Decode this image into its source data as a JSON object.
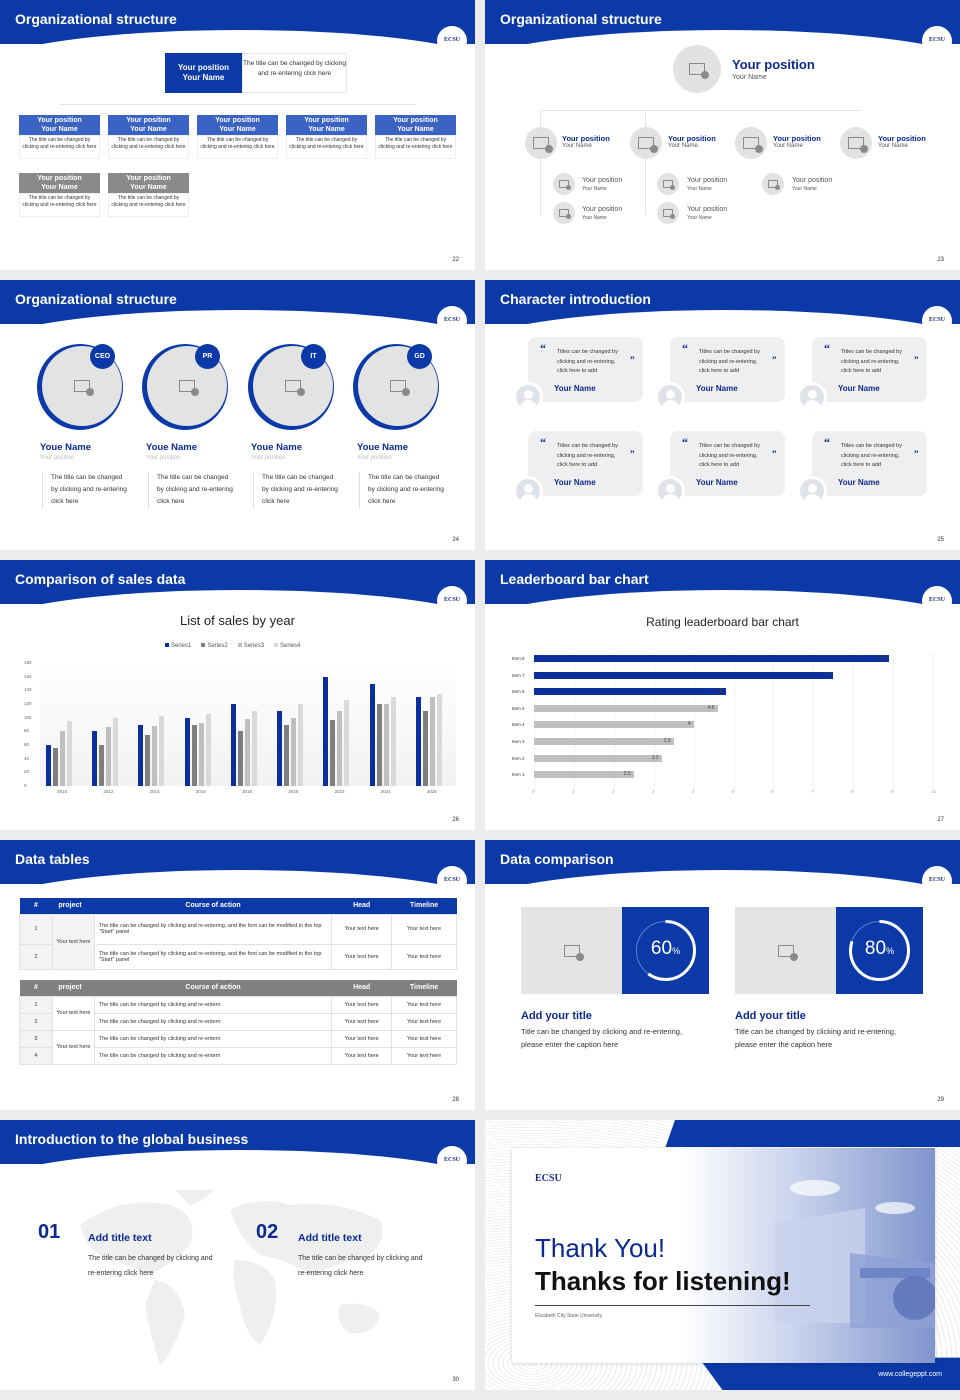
{
  "common": {
    "logo": "ECSU",
    "accent": "#0b3aa8"
  },
  "s22": {
    "title": "Organizational structure",
    "page": "22",
    "top": {
      "position": "Your position",
      "name": "Your Name",
      "desc": "The title can be changed by clicking and re-entering click here"
    },
    "cards": [
      {
        "position": "Your position",
        "name": "Your Name",
        "desc": "The title can be changed by clicking and re-entering click here",
        "style": "blue"
      },
      {
        "position": "Your position",
        "name": "Your Name",
        "desc": "The title can be changed by clicking and re-entering click here",
        "style": "blue"
      },
      {
        "position": "Your position",
        "name": "Your Name",
        "desc": "The title can be changed by clicking and re-entering click here",
        "style": "blue"
      },
      {
        "position": "Your position",
        "name": "Your Name",
        "desc": "The title can be changed by clicking and re-entering click here",
        "style": "blue"
      },
      {
        "position": "Your position",
        "name": "Your Name",
        "desc": "The title can be changed by clicking and re-entering click here",
        "style": "blue"
      },
      {
        "position": "Your position",
        "name": "Your Name",
        "desc": "The title can be changed by clicking and re-entering click here",
        "style": "gray"
      },
      {
        "position": "Your position",
        "name": "Your Name",
        "desc": "The title can be changed by clicking and re-entering click here",
        "style": "gray"
      }
    ]
  },
  "s23": {
    "title": "Organizational structure",
    "page": "23",
    "top": {
      "position": "Your position",
      "name": "Your Name"
    },
    "level2": [
      {
        "position": "Your position",
        "name": "Your Name"
      },
      {
        "position": "Your position",
        "name": "Your Name"
      },
      {
        "position": "Your position",
        "name": "Your Name"
      },
      {
        "position": "Your position",
        "name": "Your Name"
      }
    ],
    "level3": [
      {
        "position": "Your position",
        "name": "Your Name"
      },
      {
        "position": "Your position",
        "name": "Your Name"
      },
      {
        "position": "Your position",
        "name": "Your Name"
      },
      {
        "position": "Your position",
        "name": "Your Name"
      },
      {
        "position": "Your position",
        "name": "Your Name"
      }
    ]
  },
  "s24": {
    "title": "Organizational structure",
    "page": "24",
    "people": [
      {
        "role": "CEO",
        "name": "Youe Name",
        "position": "Your position",
        "desc": "The title can be changed by clicking and re-entering click here"
      },
      {
        "role": "PR",
        "name": "Youe Name",
        "position": "Your position",
        "desc": "The title can be changed by clicking and re-entering click here"
      },
      {
        "role": "IT",
        "name": "Youe Name",
        "position": "Your position",
        "desc": "The title can be changed by clicking and re-entering click here"
      },
      {
        "role": "GD",
        "name": "Youe Name",
        "position": "Your position",
        "desc": "The title can be changed by clicking and re-entering click here"
      }
    ]
  },
  "s25": {
    "title": "Character introduction",
    "page": "25",
    "quotes": [
      {
        "text": "Titles can be changed by clicking and re-entering, click here to add",
        "name": "Your Name"
      },
      {
        "text": "Titles can be changed by clicking and re-entering, click here to add",
        "name": "Your Name"
      },
      {
        "text": "Titles can be changed by clicking and re-entering, click here to add",
        "name": "Your Name"
      },
      {
        "text": "Titles can be changed by clicking and re-entering, click here to add",
        "name": "Your Name"
      },
      {
        "text": "Titles can be changed by clicking and re-entering, click here to add",
        "name": "Your Name"
      },
      {
        "text": "Titles can be changed by clicking and re-entering, click here to add",
        "name": "Your Name"
      }
    ],
    "open_quote": "“",
    "close_quote": "”"
  },
  "s26": {
    "title": "Comparison of sales data",
    "page": "26"
  },
  "s27": {
    "title": "Leaderboard bar chart",
    "page": "27"
  },
  "chart_data": [
    {
      "type": "bar",
      "title": "List of sales by year",
      "categories": [
        "2010",
        "2012",
        "2014",
        "2016",
        "2018",
        "2020",
        "2022",
        "2024",
        "2026"
      ],
      "series": [
        {
          "name": "Series1",
          "color": "#0b2f9c",
          "values": [
            60,
            80,
            90,
            100,
            120,
            110,
            160,
            150,
            130
          ]
        },
        {
          "name": "Series2",
          "color": "#7f7f7f",
          "values": [
            55,
            60,
            75,
            90,
            80,
            90,
            96,
            120,
            110
          ]
        },
        {
          "name": "Series3",
          "color": "#bfbfbf",
          "values": [
            80,
            86,
            88,
            92,
            98,
            100,
            110,
            120,
            130
          ]
        },
        {
          "name": "Series4",
          "color": "#d9d9d9",
          "values": [
            95,
            99,
            102,
            105,
            110,
            120,
            126,
            130,
            135
          ]
        }
      ],
      "yticks": [
        "0",
        "20",
        "40",
        "60",
        "80",
        "100",
        "120",
        "140",
        "160",
        "180"
      ],
      "ylim": [
        0,
        180
      ],
      "legend_position": "top",
      "grid": false
    },
    {
      "type": "bar",
      "orientation": "horizontal",
      "title": "Rating leaderboard bar chart",
      "categories": [
        "Item 8",
        "Item 7",
        "Item 6",
        "Item 5",
        "Item 4",
        "Item 3",
        "Item 2",
        "Item 1"
      ],
      "values": [
        8.9,
        7.5,
        4.8,
        4.6,
        4,
        3.5,
        3.2,
        2.5
      ],
      "labels": [
        "8.9",
        "7.5",
        "4.8",
        "4.6",
        "4",
        "3.5",
        "3.2",
        "2.5"
      ],
      "colors": [
        "#0b2f9c",
        "#0b2f9c",
        "#0b2f9c",
        "#bfbfbf",
        "#bfbfbf",
        "#bfbfbf",
        "#bfbfbf",
        "#bfbfbf"
      ],
      "xticks": [
        "0",
        "1",
        "2",
        "3",
        "4",
        "5",
        "6",
        "7",
        "8",
        "9",
        "10"
      ],
      "xlim": [
        0,
        10
      ],
      "grid": true
    }
  ],
  "s28": {
    "title": "Data tables",
    "page": "28",
    "headers": [
      "#",
      "project",
      "Course of action",
      "Head",
      "Timeline"
    ],
    "table1": {
      "project": "Your text here",
      "rows": [
        {
          "num": "1",
          "action": "The title can be changed by clicking and re-entering, and the font can be modified in the top \"Start\" panel",
          "head": "Your text here",
          "timeline": "Your text here"
        },
        {
          "num": "2",
          "action": "The title can be changed by clicking and re-entering, and the font can be modified in the top \"Start\" panel",
          "head": "Your text here",
          "timeline": "Your text here"
        }
      ]
    },
    "table2": {
      "projects": [
        "Your text here",
        "Your text here"
      ],
      "rows": [
        {
          "num": "1",
          "action": "The title can be changed by clicking and re-entern",
          "head": "Your text here",
          "timeline": "Your text here"
        },
        {
          "num": "2",
          "action": "The title can be changed by clicking and re-entern",
          "head": "Your text here",
          "timeline": "Your text here"
        },
        {
          "num": "3",
          "action": "The title can be changed by clicking and re-entern",
          "head": "Your text here",
          "timeline": "Your text here"
        },
        {
          "num": "4",
          "action": "The title can be changed by clicking and re-entern",
          "head": "Your text here",
          "timeline": "Your text here"
        }
      ]
    }
  },
  "s29": {
    "title": "Data comparison",
    "page": "29",
    "items": [
      {
        "percent": "60",
        "unit": "%",
        "value": 60,
        "title": "Add your title",
        "desc": "Title can be changed by clicking and re-entering, please enter the caption here"
      },
      {
        "percent": "80",
        "unit": "%",
        "value": 80,
        "title": "Add your title",
        "desc": "Title can be changed by clicking and re-entering, please enter the caption here"
      }
    ]
  },
  "s30": {
    "title": "Introduction to the global business",
    "page": "30",
    "items": [
      {
        "num": "01",
        "title": "Add title text",
        "desc": "The title can be changed by clicking and re-entering click here"
      },
      {
        "num": "02",
        "title": "Add title text",
        "desc": "The title can be changed by clicking and re-entering click here"
      }
    ]
  },
  "s31": {
    "logo": "ECSU",
    "line1": "Thank You!",
    "line2": "Thanks for listening!",
    "university": "Elizabeth City State University",
    "website": "www.collegeppt.com"
  }
}
